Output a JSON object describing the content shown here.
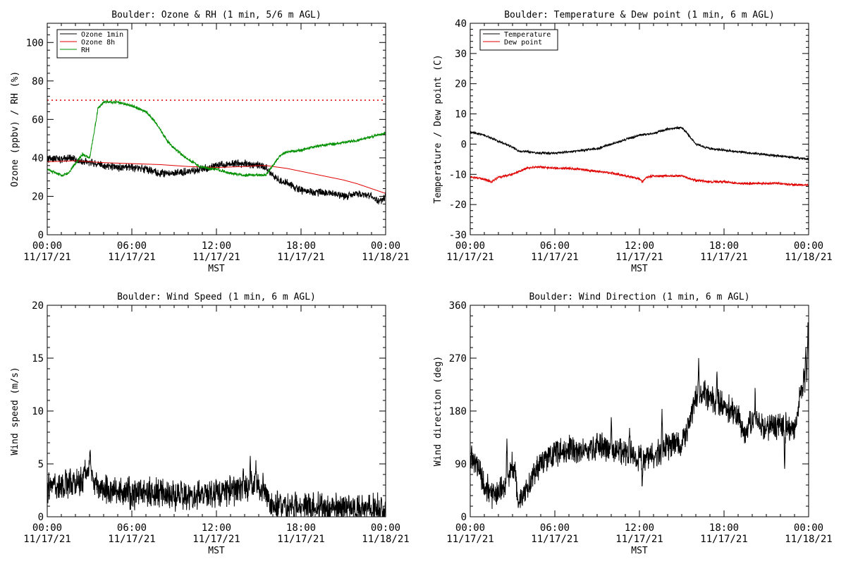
{
  "chart_data": [
    {
      "type": "line",
      "title": "Boulder: Ozone & RH (1 min, 5/6 m AGL)",
      "ylabel": "Ozone (ppbv) / RH (%)",
      "xlabel": "MST",
      "ylim": [
        0,
        110
      ],
      "yticks": [
        0,
        20,
        40,
        60,
        80,
        100
      ],
      "x_ticks": [
        {
          "h": 0,
          "time": "00:00",
          "date": "11/17/21"
        },
        {
          "h": 6,
          "time": "06:00",
          "date": "11/17/21"
        },
        {
          "h": 12,
          "time": "12:00",
          "date": "11/17/21"
        },
        {
          "h": 18,
          "time": "18:00",
          "date": "11/17/21"
        },
        {
          "h": 24,
          "time": "00:00",
          "date": "11/18/21"
        }
      ],
      "legend_position": "top-left",
      "reference_lines": [
        {
          "y": 70,
          "color": "#e00000",
          "style": "dotted"
        }
      ],
      "series": [
        {
          "name": "Ozone 1min",
          "color": "#000000",
          "noise": 1.6,
          "x": [
            0,
            0.5,
            1,
            1.5,
            2,
            2.5,
            3,
            3.5,
            4,
            5,
            6,
            7,
            8,
            9,
            10,
            11,
            12,
            13,
            14,
            15,
            15.5,
            16,
            16.5,
            17,
            17.5,
            18,
            19,
            20,
            21,
            22,
            23,
            23.5,
            24
          ],
          "y": [
            39,
            40,
            39,
            40,
            39,
            38,
            38,
            37,
            36,
            35,
            35,
            34,
            32,
            32,
            33,
            34,
            36,
            37,
            37,
            36,
            35,
            31,
            28,
            27,
            25,
            23,
            22,
            22,
            20,
            21,
            20,
            17,
            20
          ]
        },
        {
          "name": "Ozone 8h",
          "color": "#e00000",
          "noise": 0,
          "x": [
            0,
            2,
            4,
            6,
            8,
            10,
            12,
            14,
            15,
            15.5,
            16,
            17,
            18,
            19,
            20,
            21,
            22,
            23,
            24
          ],
          "y": [
            38,
            38.5,
            37.5,
            37,
            36.5,
            35.5,
            35,
            35.5,
            36,
            36,
            35.5,
            34.5,
            33,
            31.5,
            30,
            28.5,
            26.5,
            24,
            21.5
          ]
        },
        {
          "name": "RH",
          "color": "#009000",
          "noise": 0.6,
          "x": [
            0,
            1,
            1.5,
            2,
            2.5,
            3,
            3.3,
            3.6,
            4,
            5,
            6,
            7,
            7.5,
            8,
            8.5,
            9,
            9.5,
            10,
            10.5,
            11,
            12,
            13,
            14,
            15,
            15.5,
            16,
            16.5,
            17,
            18,
            19,
            20,
            21,
            22,
            23,
            24
          ],
          "y": [
            34,
            31,
            32,
            37,
            42,
            40,
            52,
            66,
            69,
            69,
            67,
            64,
            60,
            55,
            49,
            45,
            42,
            39,
            37,
            35,
            34,
            32,
            31,
            31,
            31,
            36,
            41,
            43,
            44,
            46,
            47,
            48,
            49,
            51,
            53
          ]
        }
      ]
    },
    {
      "type": "line",
      "title": "Boulder: Temperature & Dew point (1 min, 6 m AGL)",
      "ylabel": "Temperature / Dew point (C)",
      "xlabel": "MST",
      "ylim": [
        -30,
        40
      ],
      "yticks": [
        -30,
        -20,
        -10,
        0,
        10,
        20,
        30,
        40
      ],
      "x_ticks": [
        {
          "h": 0,
          "time": "00:00",
          "date": "11/17/21"
        },
        {
          "h": 6,
          "time": "06:00",
          "date": "11/17/21"
        },
        {
          "h": 12,
          "time": "12:00",
          "date": "11/17/21"
        },
        {
          "h": 18,
          "time": "18:00",
          "date": "11/17/21"
        },
        {
          "h": 24,
          "time": "00:00",
          "date": "11/18/21"
        }
      ],
      "legend_position": "top-left",
      "series": [
        {
          "name": "Temperature",
          "color": "#000000",
          "noise": 0.3,
          "x": [
            0,
            1,
            2,
            3,
            3.5,
            4,
            5,
            6,
            7,
            8,
            9,
            10,
            11,
            12,
            13,
            14,
            15,
            15.5,
            16,
            17,
            18,
            19,
            20,
            21,
            22,
            23,
            24
          ],
          "y": [
            4,
            3,
            1,
            -1,
            -2.5,
            -2.5,
            -3,
            -3,
            -2.5,
            -2,
            -1.5,
            0,
            1.5,
            3,
            3.5,
            5,
            5.5,
            3,
            0,
            -1.5,
            -2,
            -2.5,
            -3,
            -3.5,
            -4,
            -4.5,
            -5
          ]
        },
        {
          "name": "Dew point",
          "color": "#e00000",
          "noise": 0.3,
          "x": [
            0,
            1,
            1.5,
            2,
            3,
            3.5,
            4,
            5,
            6,
            7,
            8,
            9,
            10,
            11,
            12,
            12.2,
            12.5,
            13,
            14,
            15,
            16,
            17,
            18,
            19,
            20,
            21,
            22,
            23,
            24
          ],
          "y": [
            -11,
            -11.5,
            -12.5,
            -11,
            -10,
            -9,
            -8,
            -7.5,
            -8,
            -8,
            -8.5,
            -9,
            -9.5,
            -10.5,
            -11.5,
            -12.5,
            -11,
            -10.5,
            -10.5,
            -10.5,
            -12,
            -12.5,
            -12.5,
            -13,
            -13,
            -13,
            -13,
            -13.5,
            -13.5
          ]
        }
      ]
    },
    {
      "type": "line",
      "title": "Boulder: Wind Speed (1 min, 6 m AGL)",
      "ylabel": "Wind speed (m/s)",
      "xlabel": "MST",
      "ylim": [
        0,
        20
      ],
      "yticks": [
        0,
        5,
        10,
        15,
        20
      ],
      "x_ticks": [
        {
          "h": 0,
          "time": "00:00",
          "date": "11/17/21"
        },
        {
          "h": 6,
          "time": "06:00",
          "date": "11/17/21"
        },
        {
          "h": 12,
          "time": "12:00",
          "date": "11/17/21"
        },
        {
          "h": 18,
          "time": "18:00",
          "date": "11/17/21"
        },
        {
          "h": 24,
          "time": "00:00",
          "date": "11/18/21"
        }
      ],
      "series": [
        {
          "name": "",
          "color": "#000000",
          "noise": 1.1,
          "clamp_min": 0,
          "x": [
            0,
            1,
            2,
            2.5,
            3,
            3.5,
            4,
            5,
            6,
            7,
            8,
            9,
            10,
            11,
            12,
            13,
            14,
            14.5,
            15,
            15.5,
            16,
            17,
            18,
            19,
            20,
            21,
            22,
            23,
            23.5,
            24
          ],
          "y": [
            2.8,
            2.8,
            3,
            3.5,
            4.5,
            3,
            2.5,
            2.3,
            2.2,
            2.3,
            2.2,
            2,
            1.8,
            2,
            2.2,
            2.4,
            2.6,
            3,
            2.8,
            2,
            1.2,
            0.9,
            0.9,
            0.9,
            0.7,
            0.7,
            0.7,
            0.8,
            1,
            0.3
          ],
          "peaks": [
            [
              0.5,
              3.8
            ],
            [
              1.3,
              4.8
            ],
            [
              2.6,
              5.2
            ],
            [
              3.05,
              7.2
            ],
            [
              5.8,
              4.2
            ],
            [
              9.5,
              4.0
            ],
            [
              11.2,
              3.2
            ],
            [
              13.9,
              4.8
            ],
            [
              14.4,
              5.8
            ],
            [
              14.8,
              5.4
            ],
            [
              15.3,
              4.2
            ],
            [
              23.7,
              2.3
            ]
          ]
        }
      ]
    },
    {
      "type": "line",
      "title": "Boulder: Wind Direction (1 min, 6 m AGL)",
      "ylabel": "Wind direction (deg)",
      "xlabel": "MST",
      "ylim": [
        0,
        360
      ],
      "yticks": [
        0,
        90,
        180,
        270,
        360
      ],
      "x_ticks": [
        {
          "h": 0,
          "time": "00:00",
          "date": "11/17/21"
        },
        {
          "h": 6,
          "time": "06:00",
          "date": "11/17/21"
        },
        {
          "h": 12,
          "time": "12:00",
          "date": "11/17/21"
        },
        {
          "h": 18,
          "time": "18:00",
          "date": "11/17/21"
        },
        {
          "h": 24,
          "time": "00:00",
          "date": "11/18/21"
        }
      ],
      "series": [
        {
          "name": "",
          "color": "#000000",
          "noise": 18,
          "clamp_min": 0,
          "clamp_max": 360,
          "x": [
            0,
            0.5,
            1,
            1.5,
            2,
            2.5,
            3,
            3.5,
            4,
            4.5,
            5,
            5.5,
            6,
            7,
            8,
            9,
            10,
            11,
            12,
            13,
            14,
            15,
            15.5,
            16,
            16.5,
            17,
            18,
            19,
            19.5,
            20,
            21,
            22,
            23,
            23.5,
            24
          ],
          "y": [
            95,
            90,
            55,
            40,
            40,
            60,
            90,
            30,
            45,
            70,
            95,
            100,
            110,
            115,
            110,
            120,
            115,
            110,
            100,
            105,
            120,
            125,
            150,
            200,
            210,
            200,
            190,
            170,
            140,
            165,
            155,
            155,
            150,
            220,
            250
          ],
          "peaks": [
            [
              0.1,
              125
            ],
            [
              2.6,
              145
            ],
            [
              3.4,
              12
            ],
            [
              10,
              175
            ],
            [
              11.3,
              160
            ],
            [
              12.2,
              35
            ],
            [
              13.6,
              195
            ],
            [
              16.2,
              278
            ],
            [
              17.5,
              260
            ],
            [
              20.2,
              225
            ],
            [
              22.3,
              60
            ],
            [
              23.8,
              290
            ],
            [
              23.95,
              345
            ]
          ]
        }
      ]
    }
  ]
}
